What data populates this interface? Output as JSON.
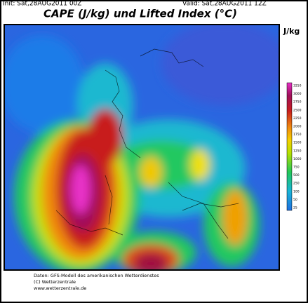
{
  "header": {
    "init": "Init: Sat,28AUG2011 00Z",
    "valid": "Valid: Sat,28AUG2011 12Z",
    "title": "CAPE (J/kg) und Lifted Index (°C)"
  },
  "legend": {
    "unit": "J/kg",
    "labels": [
      "3250",
      "3000",
      "2750",
      "2500",
      "2250",
      "2000",
      "1750",
      "1500",
      "1250",
      "1000",
      "750",
      "500",
      "250",
      "100",
      "50",
      "25"
    ]
  },
  "footer": {
    "lines": [
      "Daten: GFS-Modell des amerikanischen Wetterdienstes",
      "(C) Wetterzentrale",
      "www.wetterzentrale.de"
    ]
  }
}
